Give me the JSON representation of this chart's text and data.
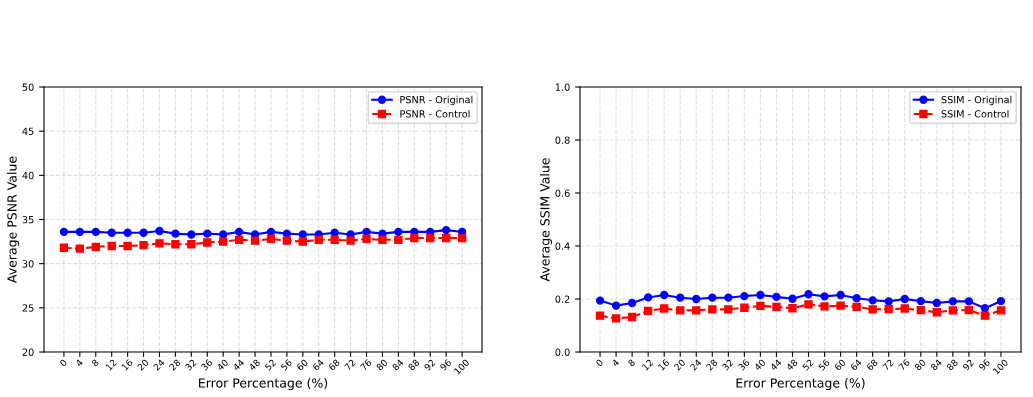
{
  "chart_data": [
    {
      "type": "line",
      "xlabel": "Error Percentage (%)",
      "ylabel": "Average PSNR Value",
      "categories": [
        "0",
        "4",
        "8",
        "12",
        "16",
        "20",
        "24",
        "28",
        "32",
        "36",
        "40",
        "44",
        "48",
        "52",
        "56",
        "60",
        "64",
        "68",
        "72",
        "76",
        "80",
        "84",
        "88",
        "92",
        "96",
        "100"
      ],
      "series": [
        {
          "name": "PSNR - Original",
          "color": "#0000ff",
          "marker": "circle",
          "line_style": "solid",
          "values": [
            33.6,
            33.6,
            33.6,
            33.5,
            33.5,
            33.5,
            33.7,
            33.4,
            33.3,
            33.4,
            33.3,
            33.6,
            33.3,
            33.6,
            33.4,
            33.3,
            33.3,
            33.5,
            33.3,
            33.6,
            33.4,
            33.6,
            33.6,
            33.6,
            33.8,
            33.6
          ]
        },
        {
          "name": "PSNR - Control",
          "color": "#ff0000",
          "marker": "square",
          "line_style": "dashed",
          "values": [
            31.8,
            31.7,
            31.9,
            32.0,
            32.0,
            32.1,
            32.3,
            32.2,
            32.2,
            32.4,
            32.5,
            32.7,
            32.6,
            32.8,
            32.6,
            32.5,
            32.7,
            32.7,
            32.6,
            32.8,
            32.7,
            32.7,
            32.9,
            32.9,
            32.9,
            32.9
          ]
        }
      ],
      "ylim": [
        20,
        50
      ],
      "yticks": [
        20,
        25,
        30,
        35,
        40,
        45,
        50
      ],
      "grid": true,
      "legend": "top right"
    },
    {
      "type": "line",
      "xlabel": "Error Percentage (%)",
      "ylabel": "Average SSIM Value",
      "categories": [
        "0",
        "4",
        "8",
        "12",
        "16",
        "20",
        "24",
        "28",
        "32",
        "36",
        "40",
        "44",
        "48",
        "52",
        "56",
        "60",
        "64",
        "68",
        "72",
        "76",
        "80",
        "84",
        "88",
        "92",
        "96",
        "100"
      ],
      "series": [
        {
          "name": "SSIM - Original",
          "color": "#0000ff",
          "marker": "circle",
          "line_style": "solid",
          "values": [
            0.194,
            0.175,
            0.185,
            0.206,
            0.215,
            0.205,
            0.2,
            0.205,
            0.205,
            0.211,
            0.215,
            0.208,
            0.201,
            0.218,
            0.21,
            0.215,
            0.203,
            0.195,
            0.191,
            0.2,
            0.192,
            0.185,
            0.191,
            0.191,
            0.165,
            0.192
          ]
        },
        {
          "name": "SSIM - Control",
          "color": "#ff0000",
          "marker": "square",
          "line_style": "dashed",
          "values": [
            0.137,
            0.127,
            0.132,
            0.155,
            0.164,
            0.157,
            0.157,
            0.161,
            0.161,
            0.167,
            0.174,
            0.17,
            0.165,
            0.18,
            0.172,
            0.175,
            0.17,
            0.161,
            0.162,
            0.164,
            0.158,
            0.15,
            0.157,
            0.158,
            0.137,
            0.157
          ]
        }
      ],
      "ylim": [
        0.0,
        1.0
      ],
      "yticks": [
        {
          "value": 0.0,
          "label": "0.0"
        },
        {
          "value": 0.2,
          "label": "0.2"
        },
        {
          "value": 0.4,
          "label": "0.4"
        },
        {
          "value": 0.6,
          "label": "0.6"
        },
        {
          "value": 0.8,
          "label": "0.8"
        },
        {
          "value": 1.0,
          "label": "1.0"
        }
      ],
      "grid": true,
      "legend": "top right"
    }
  ]
}
